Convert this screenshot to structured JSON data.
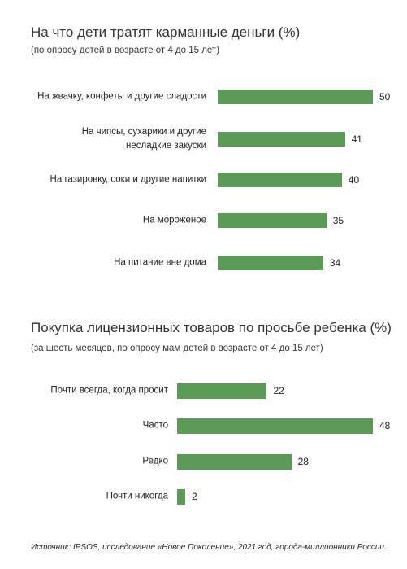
{
  "chart_data": [
    {
      "type": "bar",
      "title": "На что дети тратят карманные деньги (%)",
      "subtitle": "(по опросу детей в возрасте от 4 до 15 лет)",
      "categories": [
        "На жвачку, конфеты и другие сладости",
        "На чипсы, сухарики и другие\nнесладкие закуски",
        "На газировку, соки и другие напитки",
        "На мороженое",
        "На питание вне дома"
      ],
      "values": [
        50,
        41,
        40,
        35,
        34
      ],
      "color": "#5b9b57"
    },
    {
      "type": "bar",
      "title": "Покупка лицензионных товаров по просьбе ребенка (%)",
      "subtitle": "(за шесть месяцев, по опросу мам детей в возрасте от 4 до 15 лет)",
      "categories": [
        "Почти всегда, когда просит",
        "Часто",
        "Редко",
        "Почти никогда"
      ],
      "values": [
        22,
        48,
        28,
        2
      ],
      "color": "#5b9b57"
    }
  ],
  "source": "Источник: IPSOS, исследование «Новое Поколение», 2021 год, города-миллионники России."
}
